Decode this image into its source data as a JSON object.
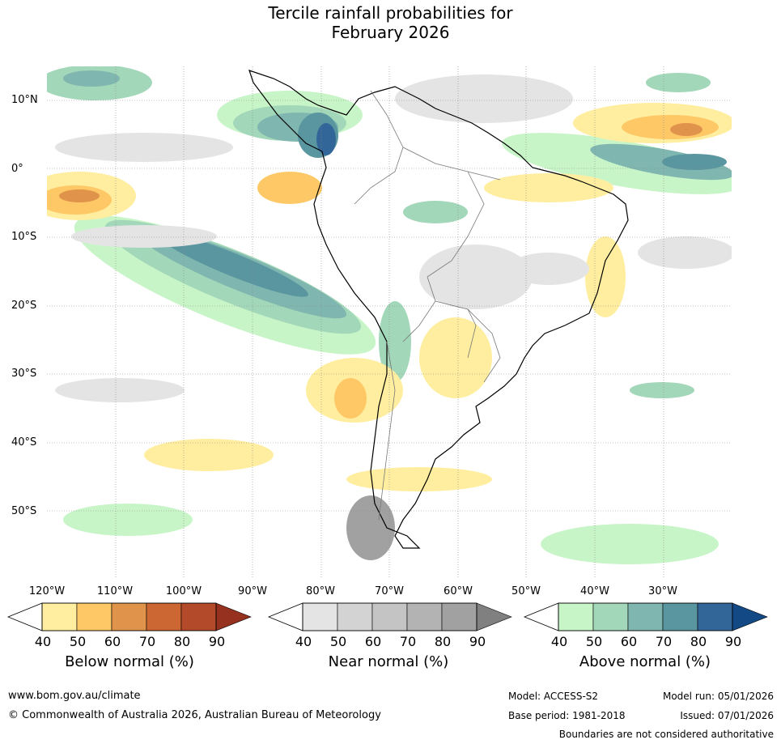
{
  "title": {
    "line1": "Tercile rainfall probabilities for",
    "line2": "February 2026"
  },
  "map": {
    "region": "South America",
    "lat_labels": [
      "10°N",
      "0°",
      "10°S",
      "20°S",
      "30°S",
      "40°S",
      "50°S"
    ],
    "lon_labels": [
      "120°W",
      "110°W",
      "100°W",
      "90°W",
      "80°W",
      "70°W",
      "60°W",
      "50°W",
      "40°W",
      "30°W"
    ]
  },
  "colorbars": {
    "below": {
      "label": "Below normal (%)",
      "ticks": [
        "40",
        "50",
        "60",
        "70",
        "80",
        "90"
      ],
      "colors": [
        "#ffeea0",
        "#fdc865",
        "#e0934a",
        "#cc6633",
        "#b34a2a",
        "#95311e"
      ]
    },
    "near": {
      "label": "Near normal (%)",
      "ticks": [
        "40",
        "50",
        "60",
        "70",
        "80",
        "90"
      ],
      "colors": [
        "#e4e4e4",
        "#d3d3d3",
        "#c4c4c4",
        "#b3b3b3",
        "#a1a1a1",
        "#808080"
      ]
    },
    "above": {
      "label": "Above normal (%)",
      "ticks": [
        "40",
        "50",
        "60",
        "70",
        "80",
        "90"
      ],
      "colors": [
        "#c8f5c8",
        "#a3d7b9",
        "#7fb6af",
        "#5a96a0",
        "#326699",
        "#134a86"
      ]
    }
  },
  "footer": {
    "website": "www.bom.gov.au/climate",
    "copyright": "© Commonwealth of Australia 2026, Australian Bureau of Meteorology",
    "model": "Model: ACCESS-S2",
    "base_period": "Base period: 1981-2018",
    "model_run": "Model run: 05/01/2026",
    "issued": "Issued: 07/01/2026",
    "disclaimer": "Boundaries are not considered authoritative"
  }
}
